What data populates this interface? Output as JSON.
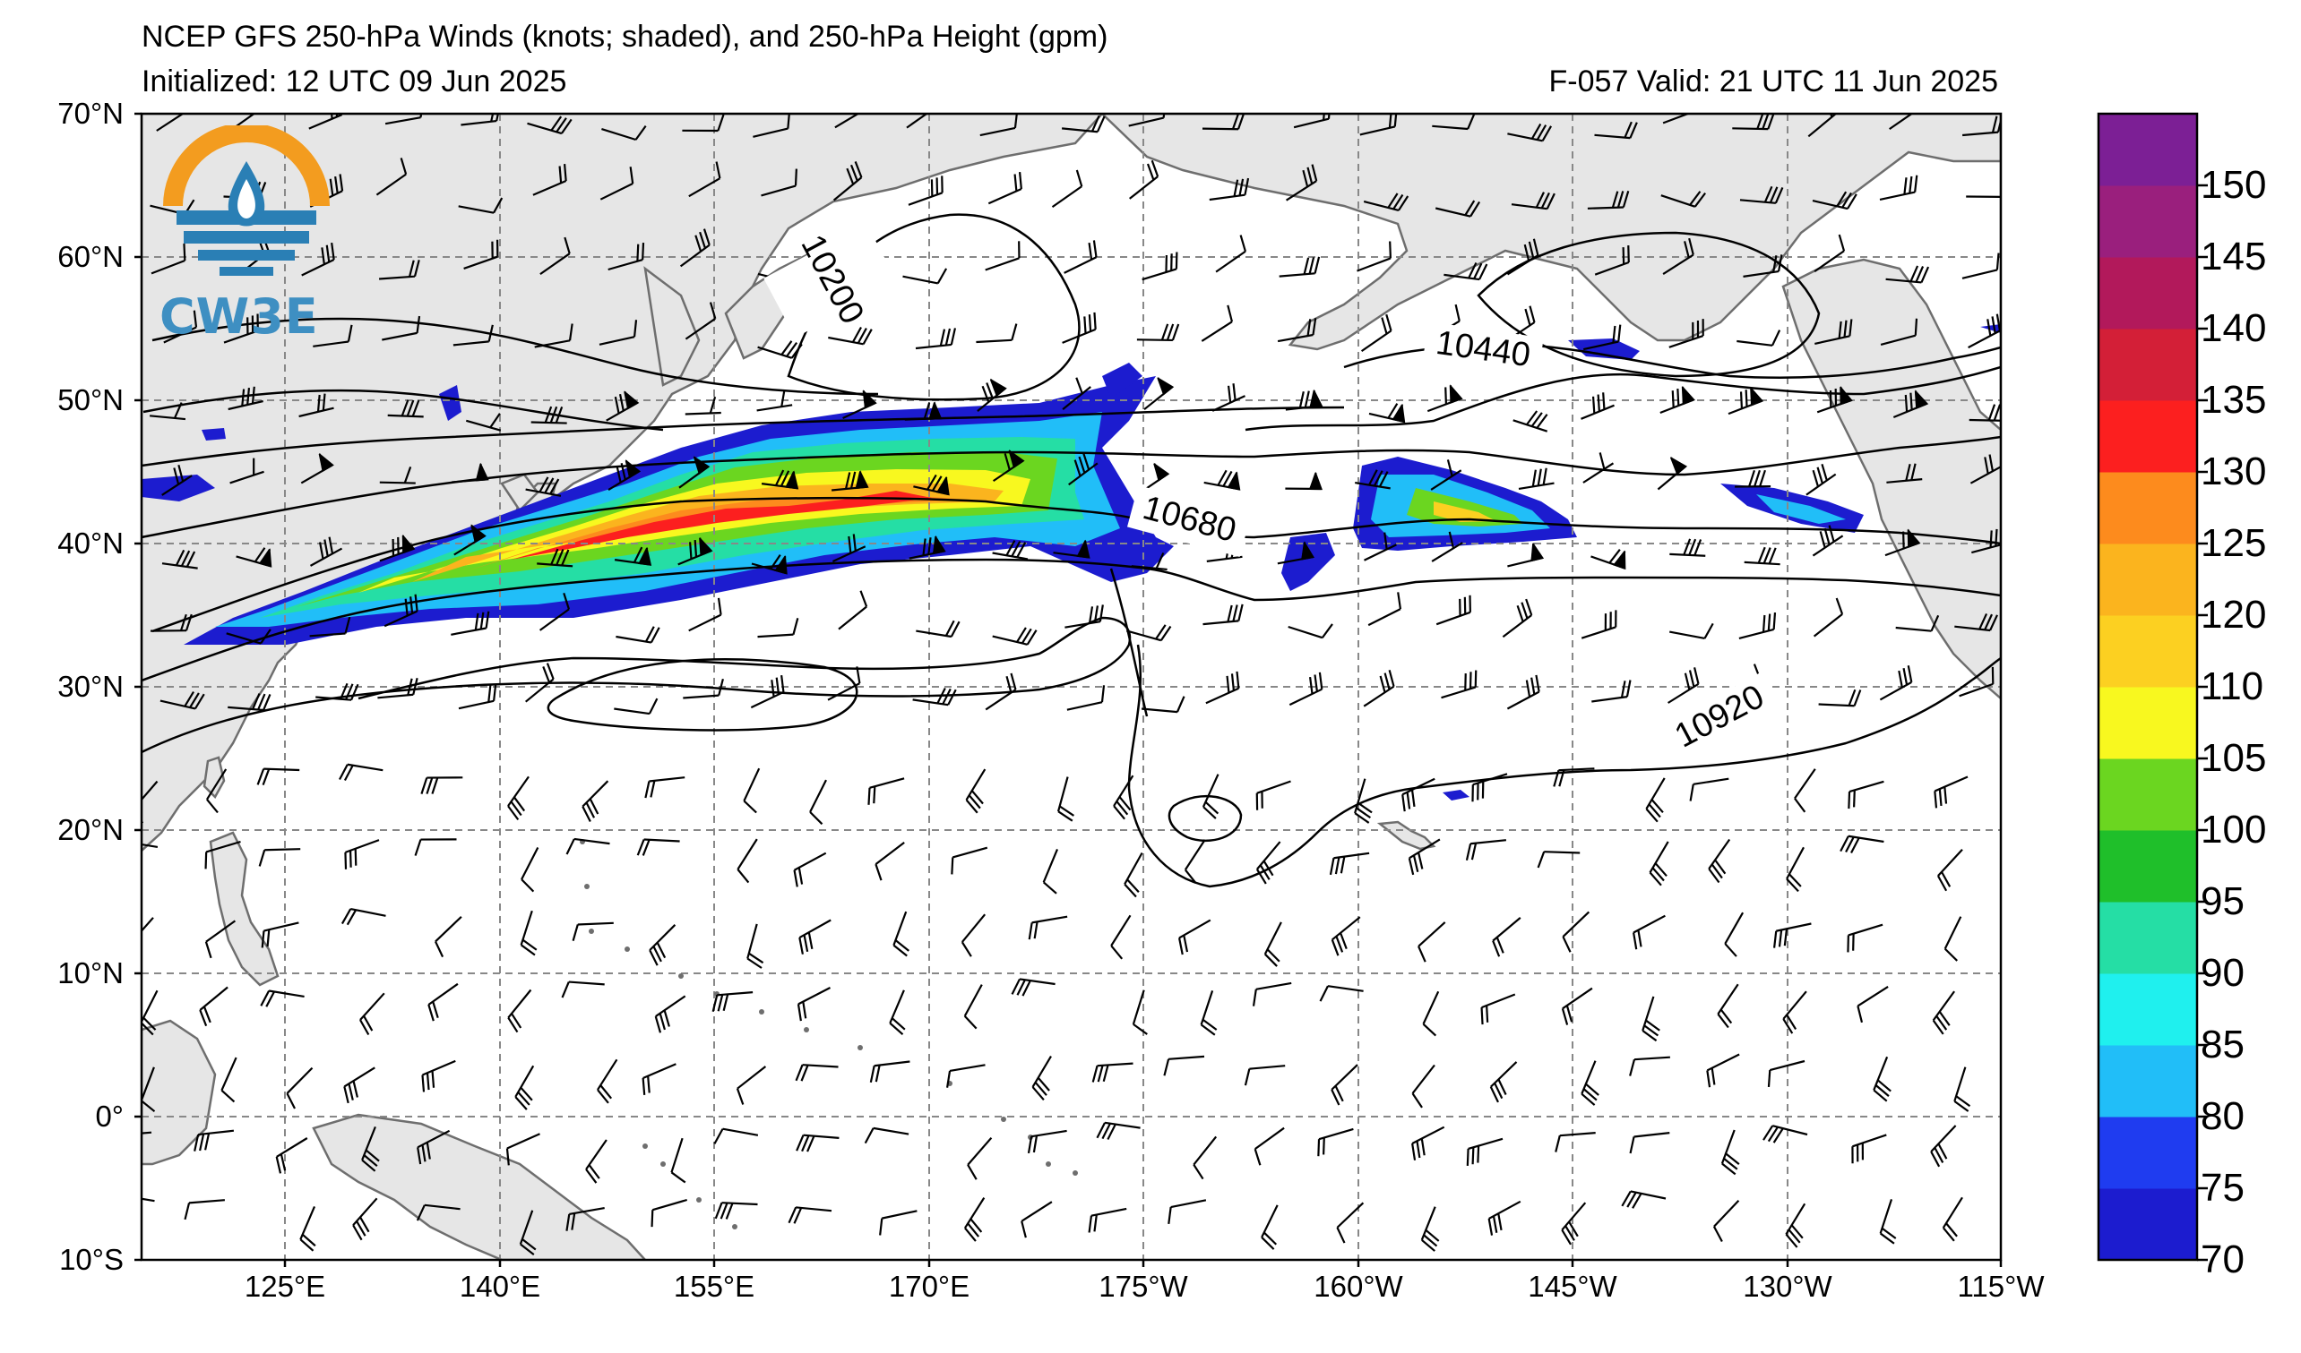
{
  "header": {
    "title_line1": "NCEP GFS 250-hPa Winds (knots; shaded), and 250-hPa Height (gpm)",
    "title_line2": "Initialized: 12 UTC 09 Jun 2025",
    "valid_line": "F-057  Valid: 21 UTC 11 Jun 2025"
  },
  "map": {
    "latitude_labels": [
      "70°N",
      "60°N",
      "50°N",
      "40°N",
      "30°N",
      "20°N",
      "10°N",
      "0°",
      "10°S"
    ],
    "longitude_labels": [
      "125°E",
      "140°E",
      "155°E",
      "170°E",
      "175°W",
      "160°W",
      "145°W",
      "130°W",
      "115°W"
    ],
    "contour_labels": [
      "10200",
      "10440",
      "10680",
      "10920"
    ],
    "jet_core_max_knots": 130,
    "land_color": "#e6e6e6",
    "coast_color": "#6e6e6e",
    "grid_color": "#888888"
  },
  "colorbar": {
    "tick_labels": [
      "70",
      "75",
      "80",
      "85",
      "90",
      "95",
      "100",
      "105",
      "110",
      "120",
      "125",
      "130",
      "135",
      "140",
      "145",
      "150"
    ],
    "colors": [
      "#1c1ccf",
      "#1f3cf0",
      "#21bef8",
      "#1ff0ee",
      "#25dea5",
      "#1fbf2a",
      "#6bd620",
      "#f8f81f",
      "#fcd021",
      "#fbb41e",
      "#fd8b1d",
      "#fc1f1f",
      "#d31f37",
      "#b2195b",
      "#9a1f7d",
      "#7c1f95"
    ]
  },
  "logo": {
    "text": "CW3E",
    "colors": [
      "#f39c1f",
      "#2a7fb5"
    ]
  }
}
